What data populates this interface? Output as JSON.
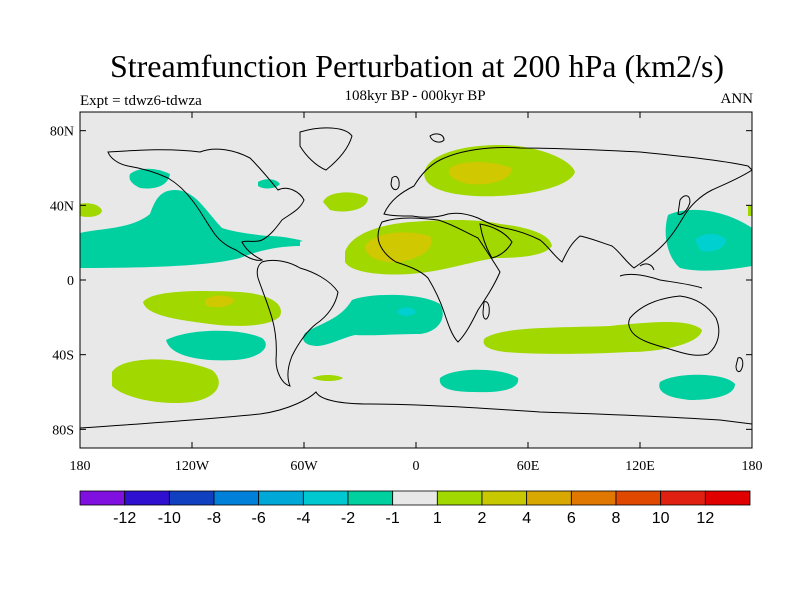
{
  "title": "Streamfunction Perturbation at 200 hPa (km2/s)",
  "subtitle": "108kyr BP - 000kyr BP",
  "left_string": "Expt = tdwz6-tdwza",
  "right_string": "ANN",
  "colors": {
    "background": "#e8e8e8",
    "land_outline": "#000000",
    "neg1": "#00d0a0",
    "neg2": "#00d0d0",
    "pos1": "#a0d800",
    "pos2": "#d0c800"
  },
  "chart_data": {
    "type": "heatmap",
    "title": "Streamfunction Perturbation at 200 hPa (km2/s)",
    "subtitle": "108kyr BP - 000kyr BP",
    "units": "km2/s",
    "lon_range": [
      -180,
      180
    ],
    "lat_range": [
      -90,
      90
    ],
    "x_ticks": [
      "180",
      "120W",
      "60W",
      "0",
      "60E",
      "120E",
      "180"
    ],
    "y_ticks": [
      "80N",
      "40N",
      "0",
      "40S",
      "80S"
    ],
    "colorbar": {
      "labels": [
        "-12",
        "-10",
        "-8",
        "-6",
        "-4",
        "-2",
        "-1",
        "1",
        "2",
        "4",
        "6",
        "8",
        "10",
        "12"
      ],
      "colors": [
        "#8010e0",
        "#3010d0",
        "#1040c0",
        "#0080d8",
        "#00a8d8",
        "#00c8d0",
        "#00d0a0",
        "#e8e8e8",
        "#a0d800",
        "#c8c800",
        "#d8a800",
        "#e07800",
        "#e04800",
        "#e02010",
        "#e00000"
      ]
    }
  }
}
